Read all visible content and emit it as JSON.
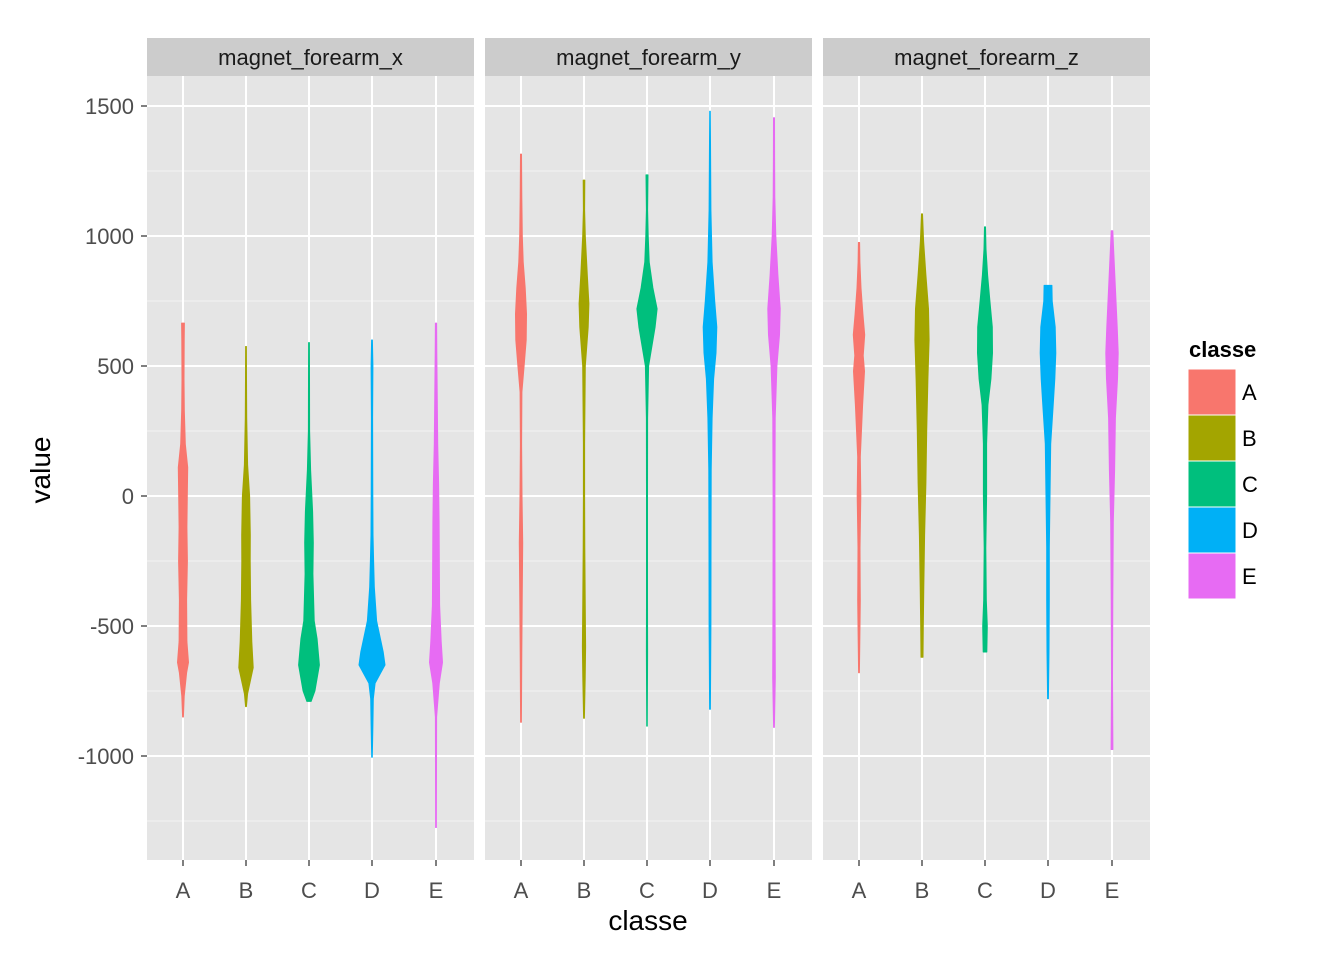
{
  "chart_data": {
    "type": "violin",
    "panels": [
      "magnet_forearm_x",
      "magnet_forearm_y",
      "magnet_forearm_z"
    ],
    "categories": [
      "A",
      "B",
      "C",
      "D",
      "E"
    ],
    "xlabel": "classe",
    "ylabel": "value",
    "ylim": [
      -1400,
      1600
    ],
    "yticks": [
      1500,
      1000,
      500,
      0,
      -500,
      -1000
    ],
    "yticklabels": [
      "1500",
      "1000",
      "500",
      "0",
      "-500",
      "-1000"
    ],
    "grid": true,
    "legend": {
      "title": "classe",
      "position": "right",
      "entries": [
        "A",
        "B",
        "C",
        "D",
        "E"
      ]
    },
    "colors": {
      "A": "#F8766D",
      "B": "#A3A500",
      "C": "#00BF7D",
      "D": "#00B0F6",
      "E": "#E76BF3",
      "panel_background": "#E5E5E5",
      "strip_background": "#CCCCCC",
      "grid": "#FFFFFF"
    },
    "series": [
      {
        "panel": "magnet_forearm_x",
        "violins": {
          "A": {
            "min": -850,
            "max": 665,
            "profile": [
              [
                -850,
                0.03
              ],
              [
                -770,
                0.09
              ],
              [
                -680,
                0.28
              ],
              [
                -640,
                0.42
              ],
              [
                -560,
                0.3
              ],
              [
                -400,
                0.28
              ],
              [
                -250,
                0.34
              ],
              [
                -120,
                0.3
              ],
              [
                30,
                0.34
              ],
              [
                110,
                0.36
              ],
              [
                200,
                0.18
              ],
              [
                330,
                0.1
              ],
              [
                450,
                0.08
              ],
              [
                600,
                0.09
              ],
              [
                665,
                0.11
              ]
            ]
          },
          "B": {
            "min": -810,
            "max": 575,
            "profile": [
              [
                -810,
                0.03
              ],
              [
                -760,
                0.12
              ],
              [
                -660,
                0.55
              ],
              [
                -560,
                0.45
              ],
              [
                -400,
                0.35
              ],
              [
                -250,
                0.32
              ],
              [
                -150,
                0.33
              ],
              [
                0,
                0.28
              ],
              [
                120,
                0.12
              ],
              [
                300,
                0.05
              ],
              [
                450,
                0.04
              ],
              [
                575,
                0.03
              ]
            ]
          },
          "C": {
            "min": -790,
            "max": 590,
            "profile": [
              [
                -790,
                0.16
              ],
              [
                -750,
                0.45
              ],
              [
                -650,
                0.8
              ],
              [
                -550,
                0.62
              ],
              [
                -480,
                0.4
              ],
              [
                -300,
                0.3
              ],
              [
                -180,
                0.33
              ],
              [
                -60,
                0.28
              ],
              [
                100,
                0.12
              ],
              [
                250,
                0.05
              ],
              [
                450,
                0.04
              ],
              [
                590,
                0.03
              ]
            ]
          },
          "D": {
            "min": -1005,
            "max": 600,
            "profile": [
              [
                -1005,
                0.02
              ],
              [
                -880,
                0.07
              ],
              [
                -780,
                0.1
              ],
              [
                -720,
                0.24
              ],
              [
                -650,
                1.0
              ],
              [
                -600,
                0.86
              ],
              [
                -480,
                0.35
              ],
              [
                -350,
                0.18
              ],
              [
                -250,
                0.12
              ],
              [
                -150,
                0.08
              ],
              [
                0,
                0.06
              ],
              [
                300,
                0.05
              ],
              [
                500,
                0.07
              ],
              [
                600,
                0.03
              ]
            ]
          },
          "E": {
            "min": -1275,
            "max": 665,
            "profile": [
              [
                -1275,
                0.03
              ],
              [
                -1050,
                0.04
              ],
              [
                -850,
                0.05
              ],
              [
                -720,
                0.25
              ],
              [
                -640,
                0.5
              ],
              [
                -560,
                0.4
              ],
              [
                -420,
                0.28
              ],
              [
                -300,
                0.26
              ],
              [
                -100,
                0.24
              ],
              [
                50,
                0.2
              ],
              [
                200,
                0.13
              ],
              [
                400,
                0.09
              ],
              [
                550,
                0.06
              ],
              [
                665,
                0.05
              ]
            ]
          }
        }
      },
      {
        "panel": "magnet_forearm_y",
        "violins": {
          "A": {
            "min": -870,
            "max": 1315,
            "profile": [
              [
                -870,
                0.03
              ],
              [
                -600,
                0.06
              ],
              [
                -400,
                0.09
              ],
              [
                -180,
                0.13
              ],
              [
                0,
                0.08
              ],
              [
                200,
                0.05
              ],
              [
                400,
                0.07
              ],
              [
                500,
                0.24
              ],
              [
                600,
                0.4
              ],
              [
                700,
                0.42
              ],
              [
                800,
                0.32
              ],
              [
                900,
                0.17
              ],
              [
                1000,
                0.1
              ],
              [
                1150,
                0.06
              ],
              [
                1315,
                0.04
              ]
            ]
          },
          "B": {
            "min": -855,
            "max": 1215,
            "profile": [
              [
                -855,
                0.03
              ],
              [
                -700,
                0.09
              ],
              [
                -580,
                0.12
              ],
              [
                -400,
                0.09
              ],
              [
                -200,
                0.06
              ],
              [
                0,
                0.05
              ],
              [
                200,
                0.05
              ],
              [
                500,
                0.1
              ],
              [
                650,
                0.32
              ],
              [
                740,
                0.38
              ],
              [
                850,
                0.25
              ],
              [
                1000,
                0.1
              ],
              [
                1100,
                0.05
              ],
              [
                1215,
                0.06
              ]
            ]
          },
          "C": {
            "min": -885,
            "max": 1235,
            "profile": [
              [
                -885,
                0.02
              ],
              [
                -600,
                0.05
              ],
              [
                -400,
                0.04
              ],
              [
                0,
                0.04
              ],
              [
                300,
                0.05
              ],
              [
                500,
                0.12
              ],
              [
                650,
                0.62
              ],
              [
                720,
                0.78
              ],
              [
                800,
                0.45
              ],
              [
                900,
                0.17
              ],
              [
                1000,
                0.09
              ],
              [
                1100,
                0.05
              ],
              [
                1235,
                0.08
              ]
            ]
          },
          "D": {
            "min": -820,
            "max": 1480,
            "profile": [
              [
                -820,
                0.03
              ],
              [
                -500,
                0.07
              ],
              [
                -200,
                0.08
              ],
              [
                100,
                0.09
              ],
              [
                300,
                0.16
              ],
              [
                450,
                0.28
              ],
              [
                550,
                0.46
              ],
              [
                650,
                0.52
              ],
              [
                750,
                0.36
              ],
              [
                900,
                0.16
              ],
              [
                1100,
                0.07
              ],
              [
                1300,
                0.05
              ],
              [
                1480,
                0.02
              ]
            ]
          },
          "E": {
            "min": -890,
            "max": 1455,
            "profile": [
              [
                -890,
                0.03
              ],
              [
                -700,
                0.1
              ],
              [
                -400,
                0.08
              ],
              [
                0,
                0.07
              ],
              [
                300,
                0.09
              ],
              [
                500,
                0.22
              ],
              [
                620,
                0.42
              ],
              [
                720,
                0.48
              ],
              [
                850,
                0.3
              ],
              [
                1000,
                0.14
              ],
              [
                1150,
                0.06
              ],
              [
                1300,
                0.05
              ],
              [
                1455,
                0.04
              ]
            ]
          }
        }
      },
      {
        "panel": "magnet_forearm_z",
        "violins": {
          "A": {
            "min": -680,
            "max": 975,
            "profile": [
              [
                -680,
                0.03
              ],
              [
                -560,
                0.06
              ],
              [
                -400,
                0.1
              ],
              [
                -350,
                0.09
              ],
              [
                -200,
                0.08
              ],
              [
                0,
                0.14
              ],
              [
                150,
                0.1
              ],
              [
                350,
                0.28
              ],
              [
                480,
                0.42
              ],
              [
                540,
                0.32
              ],
              [
                620,
                0.44
              ],
              [
                700,
                0.3
              ],
              [
                800,
                0.15
              ],
              [
                900,
                0.07
              ],
              [
                975,
                0.05
              ]
            ]
          },
          "B": {
            "min": -620,
            "max": 1085,
            "profile": [
              [
                -620,
                0.08
              ],
              [
                -500,
                0.1
              ],
              [
                -350,
                0.14
              ],
              [
                -150,
                0.2
              ],
              [
                50,
                0.3
              ],
              [
                250,
                0.36
              ],
              [
                450,
                0.45
              ],
              [
                600,
                0.55
              ],
              [
                720,
                0.5
              ],
              [
                850,
                0.3
              ],
              [
                980,
                0.12
              ],
              [
                1085,
                0.04
              ]
            ]
          },
          "C": {
            "min": -600,
            "max": 1035,
            "profile": [
              [
                -600,
                0.14
              ],
              [
                -500,
                0.18
              ],
              [
                -400,
                0.1
              ],
              [
                -200,
                0.06
              ],
              [
                0,
                0.12
              ],
              [
                200,
                0.12
              ],
              [
                350,
                0.22
              ],
              [
                450,
                0.45
              ],
              [
                550,
                0.58
              ],
              [
                650,
                0.56
              ],
              [
                750,
                0.38
              ],
              [
                850,
                0.2
              ],
              [
                950,
                0.08
              ],
              [
                1035,
                0.04
              ]
            ]
          },
          "D": {
            "min": -780,
            "max": 810,
            "profile": [
              [
                -780,
                0.03
              ],
              [
                -600,
                0.08
              ],
              [
                -400,
                0.1
              ],
              [
                -200,
                0.1
              ],
              [
                0,
                0.15
              ],
              [
                200,
                0.21
              ],
              [
                350,
                0.4
              ],
              [
                450,
                0.52
              ],
              [
                550,
                0.6
              ],
              [
                650,
                0.55
              ],
              [
                750,
                0.32
              ],
              [
                810,
                0.3
              ]
            ]
          },
          "E": {
            "min": -975,
            "max": 1020,
            "profile": [
              [
                -975,
                0.07
              ],
              [
                -700,
                0.04
              ],
              [
                -400,
                0.06
              ],
              [
                -100,
                0.1
              ],
              [
                100,
                0.2
              ],
              [
                300,
                0.26
              ],
              [
                450,
                0.42
              ],
              [
                550,
                0.48
              ],
              [
                650,
                0.4
              ],
              [
                800,
                0.26
              ],
              [
                950,
                0.12
              ],
              [
                1020,
                0.06
              ]
            ]
          }
        }
      }
    ]
  }
}
